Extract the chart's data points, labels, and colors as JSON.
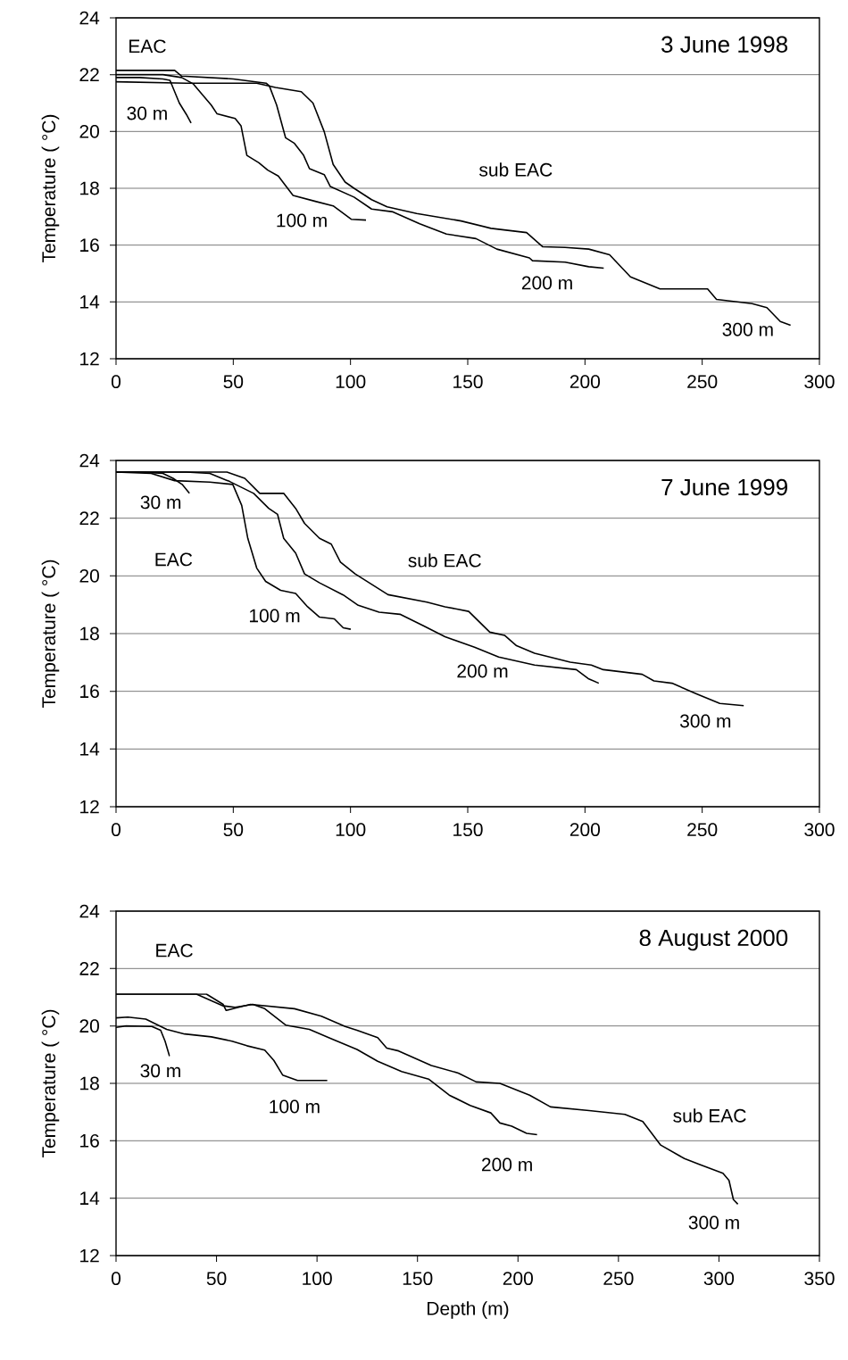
{
  "chart_data": [
    {
      "type": "line",
      "title": "3 June 1998",
      "ylabel": "Temperature ( °C)",
      "xlim": [
        0,
        300
      ],
      "ylim": [
        12,
        24
      ],
      "xticks": [
        0,
        50,
        100,
        150,
        200,
        250,
        300
      ],
      "yticks": [
        12,
        14,
        16,
        18,
        20,
        22,
        24
      ],
      "grid": "y",
      "series": [
        {
          "name": "30 m",
          "color": "#000000",
          "x": [
            0,
            10,
            20,
            23,
            27,
            30,
            32
          ],
          "values": [
            21.9,
            21.9,
            21.85,
            21.8,
            21.0,
            20.6,
            20.3
          ]
        },
        {
          "name": "100 m",
          "color": "#000000",
          "x": [
            0,
            20,
            28,
            33,
            40.6,
            43.1,
            50.8,
            53.3,
            55.8,
            60.9,
            64.7,
            69.2,
            75.5,
            85.0,
            92.6,
            100.3,
            106.6
          ],
          "values": [
            22.0,
            22.0,
            21.9,
            21.67,
            20.93,
            20.62,
            20.46,
            20.2,
            19.16,
            18.9,
            18.64,
            18.43,
            17.75,
            17.54,
            17.38,
            16.91,
            16.88
          ]
        },
        {
          "name": "200 m",
          "color": "#000000",
          "x": [
            0,
            25,
            28,
            50,
            64,
            65.4,
            68.5,
            72.3,
            76.1,
            80.0,
            82.5,
            88.8,
            91.4,
            101.5,
            109,
            118.1,
            129.5,
            140.9,
            153.5,
            162.4,
            176.3,
            177.6,
            191.5,
            201.6,
            208.0
          ],
          "values": [
            22.15,
            22.15,
            21.95,
            21.85,
            21.7,
            21.6,
            20.93,
            19.78,
            19.58,
            19.16,
            18.69,
            18.48,
            18.06,
            17.69,
            17.27,
            17.17,
            16.75,
            16.39,
            16.23,
            15.86,
            15.55,
            15.45,
            15.4,
            15.24,
            15.19
          ]
        },
        {
          "name": "300 m",
          "color": "#000000",
          "x": [
            0,
            30,
            60,
            68,
            79,
            84,
            88.8,
            92.6,
            97.7,
            101.5,
            109,
            115.6,
            128.2,
            147.2,
            159.9,
            175.1,
            182.0,
            191.5,
            201.6,
            210.5,
            219.4,
            232.0,
            252.3,
            256.1,
            271.3,
            277.6,
            283.3,
            287.7
          ],
          "values": [
            21.75,
            21.7,
            21.7,
            21.55,
            21.4,
            21.0,
            19.99,
            18.84,
            18.22,
            18.0,
            17.6,
            17.35,
            17.11,
            16.85,
            16.59,
            16.44,
            15.94,
            15.92,
            15.86,
            15.66,
            14.88,
            14.46,
            14.46,
            14.09,
            13.94,
            13.8,
            13.31,
            13.18
          ]
        }
      ],
      "annotations": [
        "EAC",
        "sub EAC"
      ]
    },
    {
      "type": "line",
      "title": "7 June 1999",
      "ylabel": "Temperature ( °C)",
      "xlim": [
        0,
        300
      ],
      "ylim": [
        12,
        24
      ],
      "xticks": [
        0,
        50,
        100,
        150,
        200,
        250,
        300
      ],
      "yticks": [
        12,
        14,
        16,
        18,
        20,
        22,
        24
      ],
      "grid": "y",
      "series": [
        {
          "name": "30 m",
          "color": "#000000",
          "x": [
            0,
            10,
            20,
            24.3,
            28.2,
            31.3
          ],
          "values": [
            23.6,
            23.6,
            23.55,
            23.38,
            23.17,
            22.86
          ]
        },
        {
          "name": "100 m",
          "color": "#000000",
          "x": [
            0,
            15,
            25,
            40,
            49.8,
            53.6,
            56.2,
            60.0,
            63.8,
            70.2,
            76.6,
            81.7,
            86.8,
            93.1,
            96.9,
            100.1
          ],
          "values": [
            23.6,
            23.55,
            23.3,
            23.25,
            23.17,
            22.44,
            21.3,
            20.27,
            19.81,
            19.5,
            19.39,
            18.93,
            18.57,
            18.51,
            18.2,
            18.15
          ]
        },
        {
          "name": "200 m",
          "color": "#000000",
          "x": [
            0,
            30,
            40,
            48.5,
            58.7,
            65.1,
            68.9,
            71.5,
            76.6,
            80.4,
            86.8,
            96.9,
            103.3,
            112.2,
            121.1,
            131.3,
            140.3,
            152.9,
            163.2,
            178.5,
            196.3,
            201.4,
            205.9
          ],
          "values": [
            23.6,
            23.6,
            23.55,
            23.27,
            22.86,
            22.34,
            22.13,
            21.3,
            20.79,
            20.07,
            19.76,
            19.34,
            18.98,
            18.74,
            18.67,
            18.26,
            17.89,
            17.53,
            17.19,
            16.91,
            16.75,
            16.44,
            16.28
          ]
        },
        {
          "name": "300 m",
          "color": "#000000",
          "x": [
            0,
            47.3,
            54.9,
            61.3,
            71.5,
            76.6,
            80.4,
            86.8,
            91.8,
            95.7,
            102.0,
            116.0,
            132.6,
            140.3,
            150.4,
            159.4,
            165.7,
            170.8,
            178.5,
            193.7,
            202.7,
            207.8,
            224.4,
            229.4,
            237.1,
            247.3,
            257.5,
            267.7
          ],
          "values": [
            23.6,
            23.6,
            23.38,
            22.86,
            22.86,
            22.34,
            21.82,
            21.3,
            21.1,
            20.48,
            20.07,
            19.35,
            19.09,
            18.93,
            18.77,
            18.05,
            17.94,
            17.58,
            17.32,
            17.01,
            16.91,
            16.75,
            16.59,
            16.36,
            16.28,
            15.92,
            15.58,
            15.5
          ]
        }
      ],
      "annotations": [
        "EAC",
        "sub EAC"
      ]
    },
    {
      "type": "line",
      "title": "8 August 2000",
      "xlabel": "Depth (m)",
      "ylabel": "Temperature ( °C)",
      "xlim": [
        0,
        350
      ],
      "ylim": [
        12,
        24
      ],
      "xticks": [
        0,
        50,
        100,
        150,
        200,
        250,
        300,
        350
      ],
      "yticks": [
        12,
        14,
        16,
        18,
        20,
        22,
        24
      ],
      "grid": "y",
      "series": [
        {
          "name": "30 m",
          "color": "#000000",
          "x": [
            0,
            5,
            17.8,
            22.2,
            24.4,
            26.6
          ],
          "values": [
            19.95,
            20.0,
            19.98,
            19.85,
            19.47,
            18.95
          ]
        },
        {
          "name": "100 m",
          "color": "#000000",
          "x": [
            0,
            5.9,
            14.8,
            25.2,
            34.1,
            47.4,
            57.7,
            65.1,
            74.0,
            78.5,
            82.9,
            90.3,
            105.1
          ],
          "values": [
            20.28,
            20.31,
            20.24,
            19.88,
            19.72,
            19.62,
            19.47,
            19.31,
            19.16,
            18.8,
            18.29,
            18.1,
            18.1
          ]
        },
        {
          "name": "200 m",
          "color": "#000000",
          "x": [
            0,
            40,
            53.3,
            59.2,
            68.1,
            74.0,
            84.4,
            96.2,
            106.6,
            119.9,
            130.2,
            142.1,
            155.5,
            165.8,
            176.2,
            186.5,
            191.0,
            196.9,
            204.3,
            209.5
          ],
          "values": [
            21.11,
            21.11,
            20.7,
            20.65,
            20.75,
            20.6,
            20.03,
            19.88,
            19.57,
            19.18,
            18.77,
            18.41,
            18.15,
            17.59,
            17.23,
            16.97,
            16.62,
            16.51,
            16.26,
            16.21
          ]
        },
        {
          "name": "300 m",
          "color": "#000000",
          "x": [
            0,
            45,
            53.3,
            54.8,
            59.2,
            66.9,
            88.8,
            102.2,
            114.0,
            119.9,
            130.2,
            134.7,
            140.6,
            156.9,
            170.3,
            179.2,
            191.0,
            205.8,
            216.2,
            235.4,
            253.2,
            262.1,
            271.0,
            282.8,
            290.2,
            302.0,
            305.0,
            307.2,
            309.4
          ],
          "values": [
            21.11,
            21.11,
            20.75,
            20.54,
            20.62,
            20.75,
            20.6,
            20.34,
            19.98,
            19.85,
            19.59,
            19.23,
            19.13,
            18.62,
            18.36,
            18.05,
            18.0,
            17.59,
            17.18,
            17.05,
            16.92,
            16.67,
            15.85,
            15.38,
            15.18,
            14.87,
            14.62,
            13.95,
            13.79
          ]
        }
      ],
      "annotations": [
        "EAC",
        "sub EAC"
      ]
    }
  ]
}
